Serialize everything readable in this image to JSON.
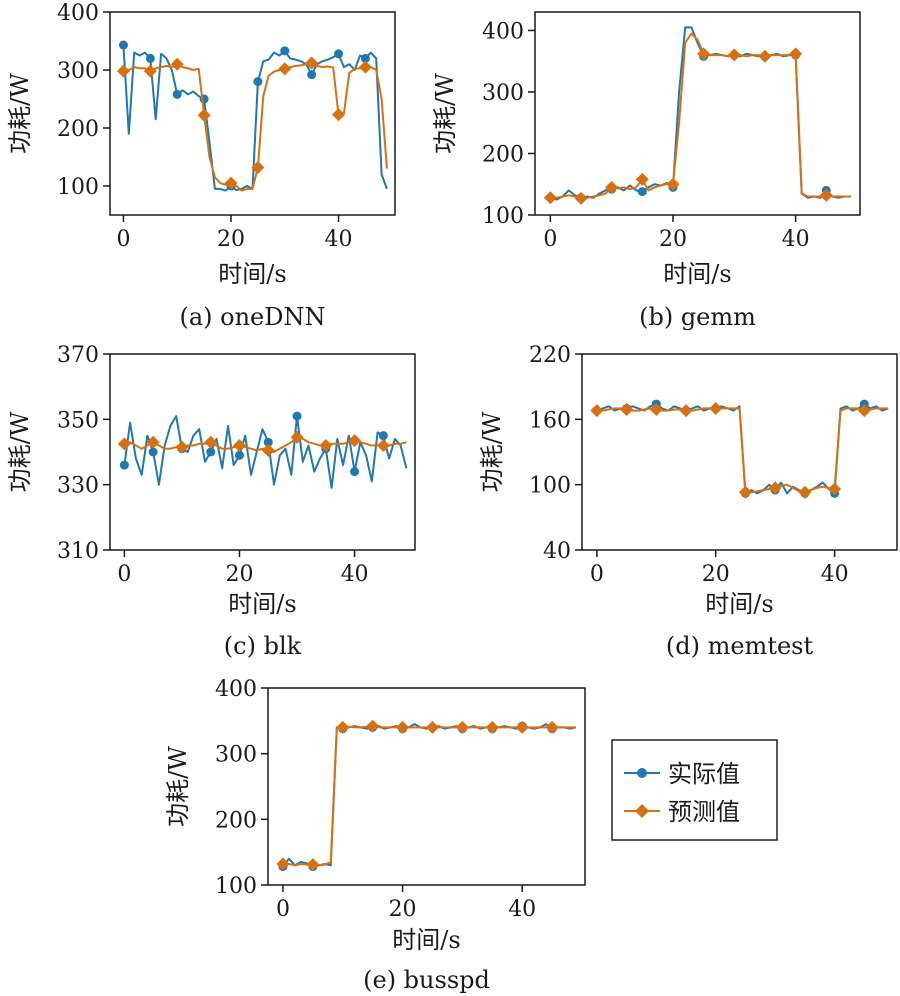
{
  "legend": {
    "actual_label": "实际值",
    "predicted_label": "预测值"
  },
  "colors": {
    "actual": "#1f77b4",
    "predicted": "#d9700f",
    "axes": "#1a1a1a"
  },
  "chart_data": [
    {
      "type": "line",
      "caption": "(a) oneDNN",
      "xlabel": "时间/s",
      "ylabel": "功耗/W",
      "xlim": [
        -2.5,
        50.5
      ],
      "ylim": [
        50,
        400
      ],
      "xticks": [
        0,
        20,
        40
      ],
      "yticks": [
        100,
        200,
        300,
        400
      ],
      "marker_every": 5,
      "series": [
        {
          "name": "实际值",
          "x": [
            0,
            1,
            2,
            3,
            4,
            5,
            6,
            7,
            8,
            9,
            10,
            11,
            12,
            13,
            14,
            15,
            16,
            17,
            18,
            19,
            20,
            21,
            22,
            23,
            24,
            25,
            26,
            27,
            28,
            29,
            30,
            31,
            32,
            33,
            34,
            35,
            36,
            37,
            38,
            39,
            40,
            41,
            42,
            43,
            44,
            45,
            46,
            47,
            48,
            49
          ],
          "values": [
            343,
            190,
            330,
            325,
            330,
            320,
            215,
            328,
            320,
            300,
            258,
            265,
            258,
            263,
            255,
            250,
            175,
            95,
            95,
            92,
            100,
            93,
            95,
            100,
            95,
            280,
            315,
            318,
            330,
            325,
            333,
            320,
            318,
            315,
            310,
            292,
            310,
            315,
            318,
            322,
            328,
            305,
            310,
            300,
            325,
            320,
            330,
            320,
            120,
            95
          ]
        },
        {
          "name": "预测值",
          "x": [
            0,
            1,
            2,
            3,
            4,
            5,
            6,
            7,
            8,
            9,
            10,
            11,
            12,
            13,
            14,
            15,
            16,
            17,
            18,
            19,
            20,
            21,
            22,
            23,
            24,
            25,
            26,
            27,
            28,
            29,
            30,
            31,
            32,
            33,
            34,
            35,
            36,
            37,
            38,
            39,
            40,
            41,
            42,
            43,
            44,
            45,
            46,
            47,
            48,
            49
          ],
          "values": [
            298,
            300,
            305,
            303,
            303,
            298,
            303,
            305,
            307,
            305,
            310,
            305,
            303,
            300,
            302,
            222,
            150,
            115,
            105,
            102,
            105,
            100,
            92,
            95,
            95,
            132,
            255,
            290,
            297,
            300,
            302,
            305,
            307,
            308,
            310,
            312,
            307,
            305,
            306,
            304,
            223,
            225,
            295,
            302,
            303,
            305,
            305,
            300,
            250,
            130
          ]
        }
      ]
    },
    {
      "type": "line",
      "caption": "(b) gemm",
      "xlabel": "时间/s",
      "ylabel": "功耗/W",
      "xlim": [
        -2.5,
        50.5
      ],
      "ylim": [
        100,
        430
      ],
      "xticks": [
        0,
        20,
        40
      ],
      "yticks": [
        100,
        200,
        300,
        400
      ],
      "marker_every": 5,
      "series": [
        {
          "name": "实际值",
          "x": [
            0,
            1,
            2,
            3,
            4,
            5,
            6,
            7,
            8,
            9,
            10,
            11,
            12,
            13,
            14,
            15,
            16,
            17,
            18,
            19,
            20,
            21,
            22,
            23,
            24,
            25,
            26,
            27,
            28,
            29,
            30,
            31,
            32,
            33,
            34,
            35,
            36,
            37,
            38,
            39,
            40,
            41,
            42,
            43,
            44,
            45,
            46,
            47,
            48,
            49
          ],
          "values": [
            128,
            125,
            130,
            140,
            132,
            128,
            130,
            128,
            135,
            140,
            142,
            145,
            140,
            148,
            140,
            138,
            145,
            150,
            148,
            152,
            145,
            300,
            405,
            405,
            380,
            358,
            360,
            362,
            360,
            358,
            360,
            358,
            362,
            360,
            358,
            358,
            360,
            362,
            358,
            360,
            360,
            135,
            128,
            130,
            128,
            140,
            130,
            128,
            130,
            130
          ]
        },
        {
          "name": "预测值",
          "x": [
            0,
            1,
            2,
            3,
            4,
            5,
            6,
            7,
            8,
            9,
            10,
            11,
            12,
            13,
            14,
            15,
            16,
            17,
            18,
            19,
            20,
            21,
            22,
            23,
            24,
            25,
            26,
            27,
            28,
            29,
            30,
            31,
            32,
            33,
            34,
            35,
            36,
            37,
            38,
            39,
            40,
            41,
            42,
            43,
            44,
            45,
            46,
            47,
            48,
            49
          ],
          "values": [
            128,
            128,
            130,
            132,
            130,
            127,
            128,
            130,
            132,
            135,
            145,
            143,
            145,
            142,
            145,
            158,
            140,
            145,
            148,
            150,
            150,
            250,
            380,
            395,
            385,
            362,
            360,
            360,
            360,
            358,
            360,
            360,
            358,
            360,
            360,
            358,
            360,
            360,
            360,
            360,
            362,
            135,
            130,
            130,
            130,
            132,
            130,
            130,
            130,
            130
          ]
        }
      ]
    },
    {
      "type": "line",
      "caption": "(c) blk",
      "xlabel": "时间/s",
      "ylabel": "功耗/W",
      "xlim": [
        -2.5,
        50.5
      ],
      "ylim": [
        310,
        370
      ],
      "xticks": [
        0,
        20,
        40
      ],
      "yticks": [
        310,
        330,
        350,
        370
      ],
      "marker_every": 5,
      "series": [
        {
          "name": "实际值",
          "x": [
            0,
            1,
            2,
            3,
            4,
            5,
            6,
            7,
            8,
            9,
            10,
            11,
            12,
            13,
            14,
            15,
            16,
            17,
            18,
            19,
            20,
            21,
            22,
            23,
            24,
            25,
            26,
            27,
            28,
            29,
            30,
            31,
            32,
            33,
            34,
            35,
            36,
            37,
            38,
            39,
            40,
            41,
            42,
            43,
            44,
            45,
            46,
            47,
            48,
            49
          ],
          "values": [
            336,
            349,
            338,
            333,
            345,
            340,
            330,
            342,
            348,
            351,
            341,
            340,
            345,
            347,
            337,
            340,
            344,
            335,
            348,
            336,
            339,
            345,
            333,
            340,
            347,
            343,
            330,
            339,
            341,
            333,
            351,
            337,
            342,
            334,
            338,
            341,
            329,
            344,
            336,
            345,
            334,
            343,
            339,
            331,
            346,
            345,
            338,
            344,
            342,
            335
          ]
        },
        {
          "name": "预测值",
          "x": [
            0,
            1,
            2,
            3,
            4,
            5,
            6,
            7,
            8,
            9,
            10,
            11,
            12,
            13,
            14,
            15,
            16,
            17,
            18,
            19,
            20,
            21,
            22,
            23,
            24,
            25,
            26,
            27,
            28,
            29,
            30,
            31,
            32,
            33,
            34,
            35,
            36,
            37,
            38,
            39,
            40,
            41,
            42,
            43,
            44,
            45,
            46,
            47,
            48,
            49
          ],
          "values": [
            342.5,
            343,
            342,
            341,
            342,
            343,
            342,
            341,
            341,
            341.5,
            341.5,
            342,
            342,
            342.5,
            342.5,
            343,
            342,
            341,
            341,
            341.5,
            342,
            341.5,
            341,
            340.5,
            341,
            340.5,
            340,
            341,
            342,
            343,
            344.5,
            344,
            343,
            342.5,
            342,
            342,
            342.5,
            342.5,
            342.5,
            343,
            343.5,
            343,
            342.5,
            342,
            342,
            342,
            342,
            342.5,
            342.5,
            343
          ]
        }
      ]
    },
    {
      "type": "line",
      "caption": "(d) memtest",
      "xlabel": "时间/s",
      "ylabel": "功耗/W",
      "xlim": [
        -2.5,
        50.5
      ],
      "ylim": [
        40,
        220
      ],
      "xticks": [
        0,
        20,
        40
      ],
      "yticks": [
        40,
        100,
        160,
        220
      ],
      "marker_every": 5,
      "series": [
        {
          "name": "实际值",
          "x": [
            0,
            1,
            2,
            3,
            4,
            5,
            6,
            7,
            8,
            9,
            10,
            11,
            12,
            13,
            14,
            15,
            16,
            17,
            18,
            19,
            20,
            21,
            22,
            23,
            24,
            25,
            26,
            27,
            28,
            29,
            30,
            31,
            32,
            33,
            34,
            35,
            36,
            37,
            38,
            39,
            40,
            41,
            42,
            43,
            44,
            45,
            46,
            47,
            48,
            49
          ],
          "values": [
            168,
            170,
            172,
            168,
            170,
            170,
            172,
            170,
            168,
            172,
            174,
            170,
            168,
            172,
            170,
            168,
            170,
            172,
            168,
            170,
            170,
            172,
            170,
            168,
            172,
            92,
            95,
            92,
            95,
            100,
            95,
            102,
            92,
            98,
            95,
            92,
            95,
            98,
            102,
            96,
            92,
            170,
            172,
            168,
            170,
            174,
            170,
            172,
            168,
            170
          ]
        },
        {
          "name": "预测值",
          "x": [
            0,
            1,
            2,
            3,
            4,
            5,
            6,
            7,
            8,
            9,
            10,
            11,
            12,
            13,
            14,
            15,
            16,
            17,
            18,
            19,
            20,
            21,
            22,
            23,
            24,
            25,
            26,
            27,
            28,
            29,
            30,
            31,
            32,
            33,
            34,
            35,
            36,
            37,
            38,
            39,
            40,
            41,
            42,
            43,
            44,
            45,
            46,
            47,
            48,
            49
          ],
          "values": [
            168,
            168,
            169,
            170,
            170,
            169,
            168,
            168,
            169,
            170,
            169,
            168,
            168,
            169,
            169,
            168,
            168,
            169,
            170,
            170,
            170,
            170,
            170,
            170,
            170,
            93,
            93,
            94,
            95,
            96,
            97,
            99,
            100,
            97,
            94,
            93,
            95,
            97,
            98,
            97,
            96,
            168,
            170,
            170,
            170,
            168,
            169,
            170,
            170,
            170
          ]
        }
      ]
    },
    {
      "type": "line",
      "caption": "(e) busspd",
      "xlabel": "时间/s",
      "ylabel": "功耗/W",
      "xlim": [
        -2.5,
        50.5
      ],
      "ylim": [
        100,
        400
      ],
      "xticks": [
        0,
        20,
        40
      ],
      "yticks": [
        100,
        200,
        300,
        400
      ],
      "marker_every": 5,
      "series": [
        {
          "name": "实际值",
          "x": [
            0,
            1,
            2,
            3,
            4,
            5,
            6,
            7,
            8,
            9,
            10,
            11,
            12,
            13,
            14,
            15,
            16,
            17,
            18,
            19,
            20,
            21,
            22,
            23,
            24,
            25,
            26,
            27,
            28,
            29,
            30,
            31,
            32,
            33,
            34,
            35,
            36,
            37,
            38,
            39,
            40,
            41,
            42,
            43,
            44,
            45,
            46,
            47,
            48,
            49
          ],
          "values": [
            128,
            140,
            130,
            135,
            133,
            128,
            130,
            132,
            130,
            340,
            338,
            340,
            342,
            340,
            338,
            340,
            342,
            338,
            340,
            342,
            338,
            340,
            345,
            340,
            338,
            340,
            342,
            338,
            340,
            342,
            338,
            340,
            342,
            338,
            340,
            338,
            340,
            342,
            340,
            338,
            342,
            340,
            338,
            340,
            345,
            338,
            340,
            340,
            338,
            340
          ]
        },
        {
          "name": "预测值",
          "x": [
            0,
            1,
            2,
            3,
            4,
            5,
            6,
            7,
            8,
            9,
            10,
            11,
            12,
            13,
            14,
            15,
            16,
            17,
            18,
            19,
            20,
            21,
            22,
            23,
            24,
            25,
            26,
            27,
            28,
            29,
            30,
            31,
            32,
            33,
            34,
            35,
            36,
            37,
            38,
            39,
            40,
            41,
            42,
            43,
            44,
            45,
            46,
            47,
            48,
            49
          ],
          "values": [
            132,
            132,
            130,
            132,
            131,
            131,
            130,
            131,
            135,
            338,
            340,
            341,
            340,
            340,
            341,
            342,
            340,
            340,
            340,
            340,
            340,
            340,
            340,
            340,
            340,
            340,
            340,
            340,
            340,
            340,
            340,
            340,
            340,
            340,
            340,
            340,
            340,
            340,
            340,
            340,
            340,
            340,
            340,
            340,
            340,
            340,
            340,
            340,
            340,
            340
          ]
        }
      ]
    }
  ]
}
